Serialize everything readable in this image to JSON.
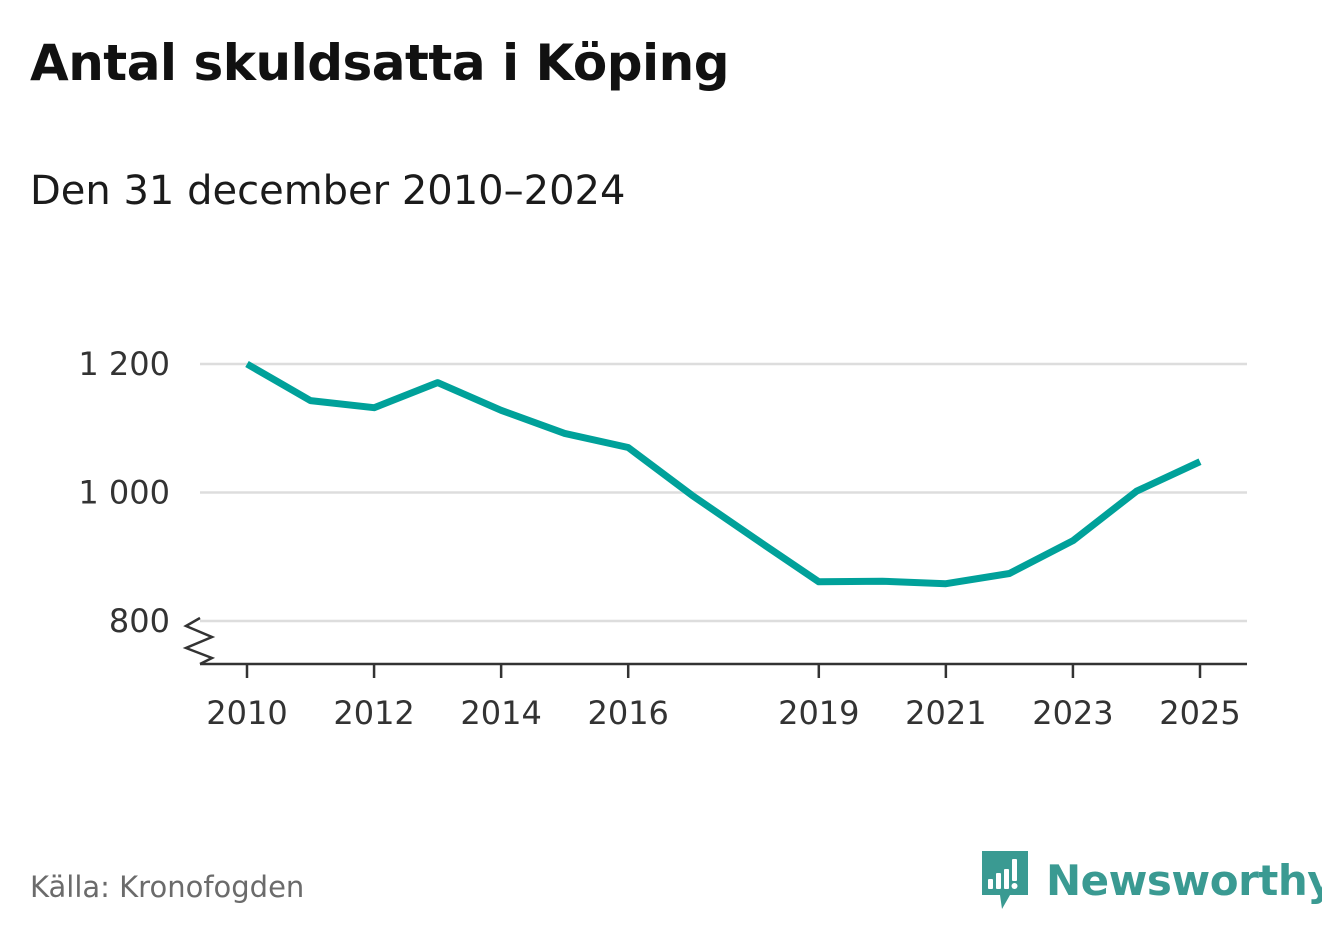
{
  "title": "Antal skuldsatta i Köping",
  "subtitle": "Den 31 december 2010–2024",
  "source": "Källa: Kronofogden",
  "brand": {
    "name": "Newsworthy",
    "icon": "bar-chart-speech-bubble-icon",
    "color": "#3a9a92"
  },
  "colors": {
    "line": "#00a19a",
    "grid": "#dddddd",
    "axis": "#333333"
  },
  "chart_data": {
    "type": "line",
    "title": "Antal skuldsatta i Köping",
    "subtitle": "Den 31 december 2010–2024",
    "xlabel": "",
    "ylabel": "",
    "ylim": [
      800,
      1200
    ],
    "xlim": [
      2010,
      2025
    ],
    "y_ticks": [
      {
        "value": 800,
        "label": "800"
      },
      {
        "value": 1000,
        "label": "1 000"
      },
      {
        "value": 1200,
        "label": "1 200"
      }
    ],
    "x_ticks": [
      {
        "value": 2010,
        "label": "2010"
      },
      {
        "value": 2012,
        "label": "2012"
      },
      {
        "value": 2014,
        "label": "2014"
      },
      {
        "value": 2016,
        "label": "2016"
      },
      {
        "value": 2019,
        "label": "2019"
      },
      {
        "value": 2021,
        "label": "2021"
      },
      {
        "value": 2023,
        "label": "2023"
      },
      {
        "value": 2025,
        "label": "2025"
      }
    ],
    "axis_break": true,
    "grid": true,
    "series": [
      {
        "name": "Antal skuldsatta",
        "x": [
          2010,
          2011,
          2012,
          2013,
          2014,
          2015,
          2016,
          2017,
          2018,
          2019,
          2020,
          2021,
          2022,
          2023,
          2024,
          2025
        ],
        "values": [
          1200,
          1143,
          1132,
          1171,
          1128,
          1092,
          1070,
          996,
          928,
          861,
          862,
          858,
          874,
          925,
          1002,
          1048
        ]
      }
    ]
  }
}
